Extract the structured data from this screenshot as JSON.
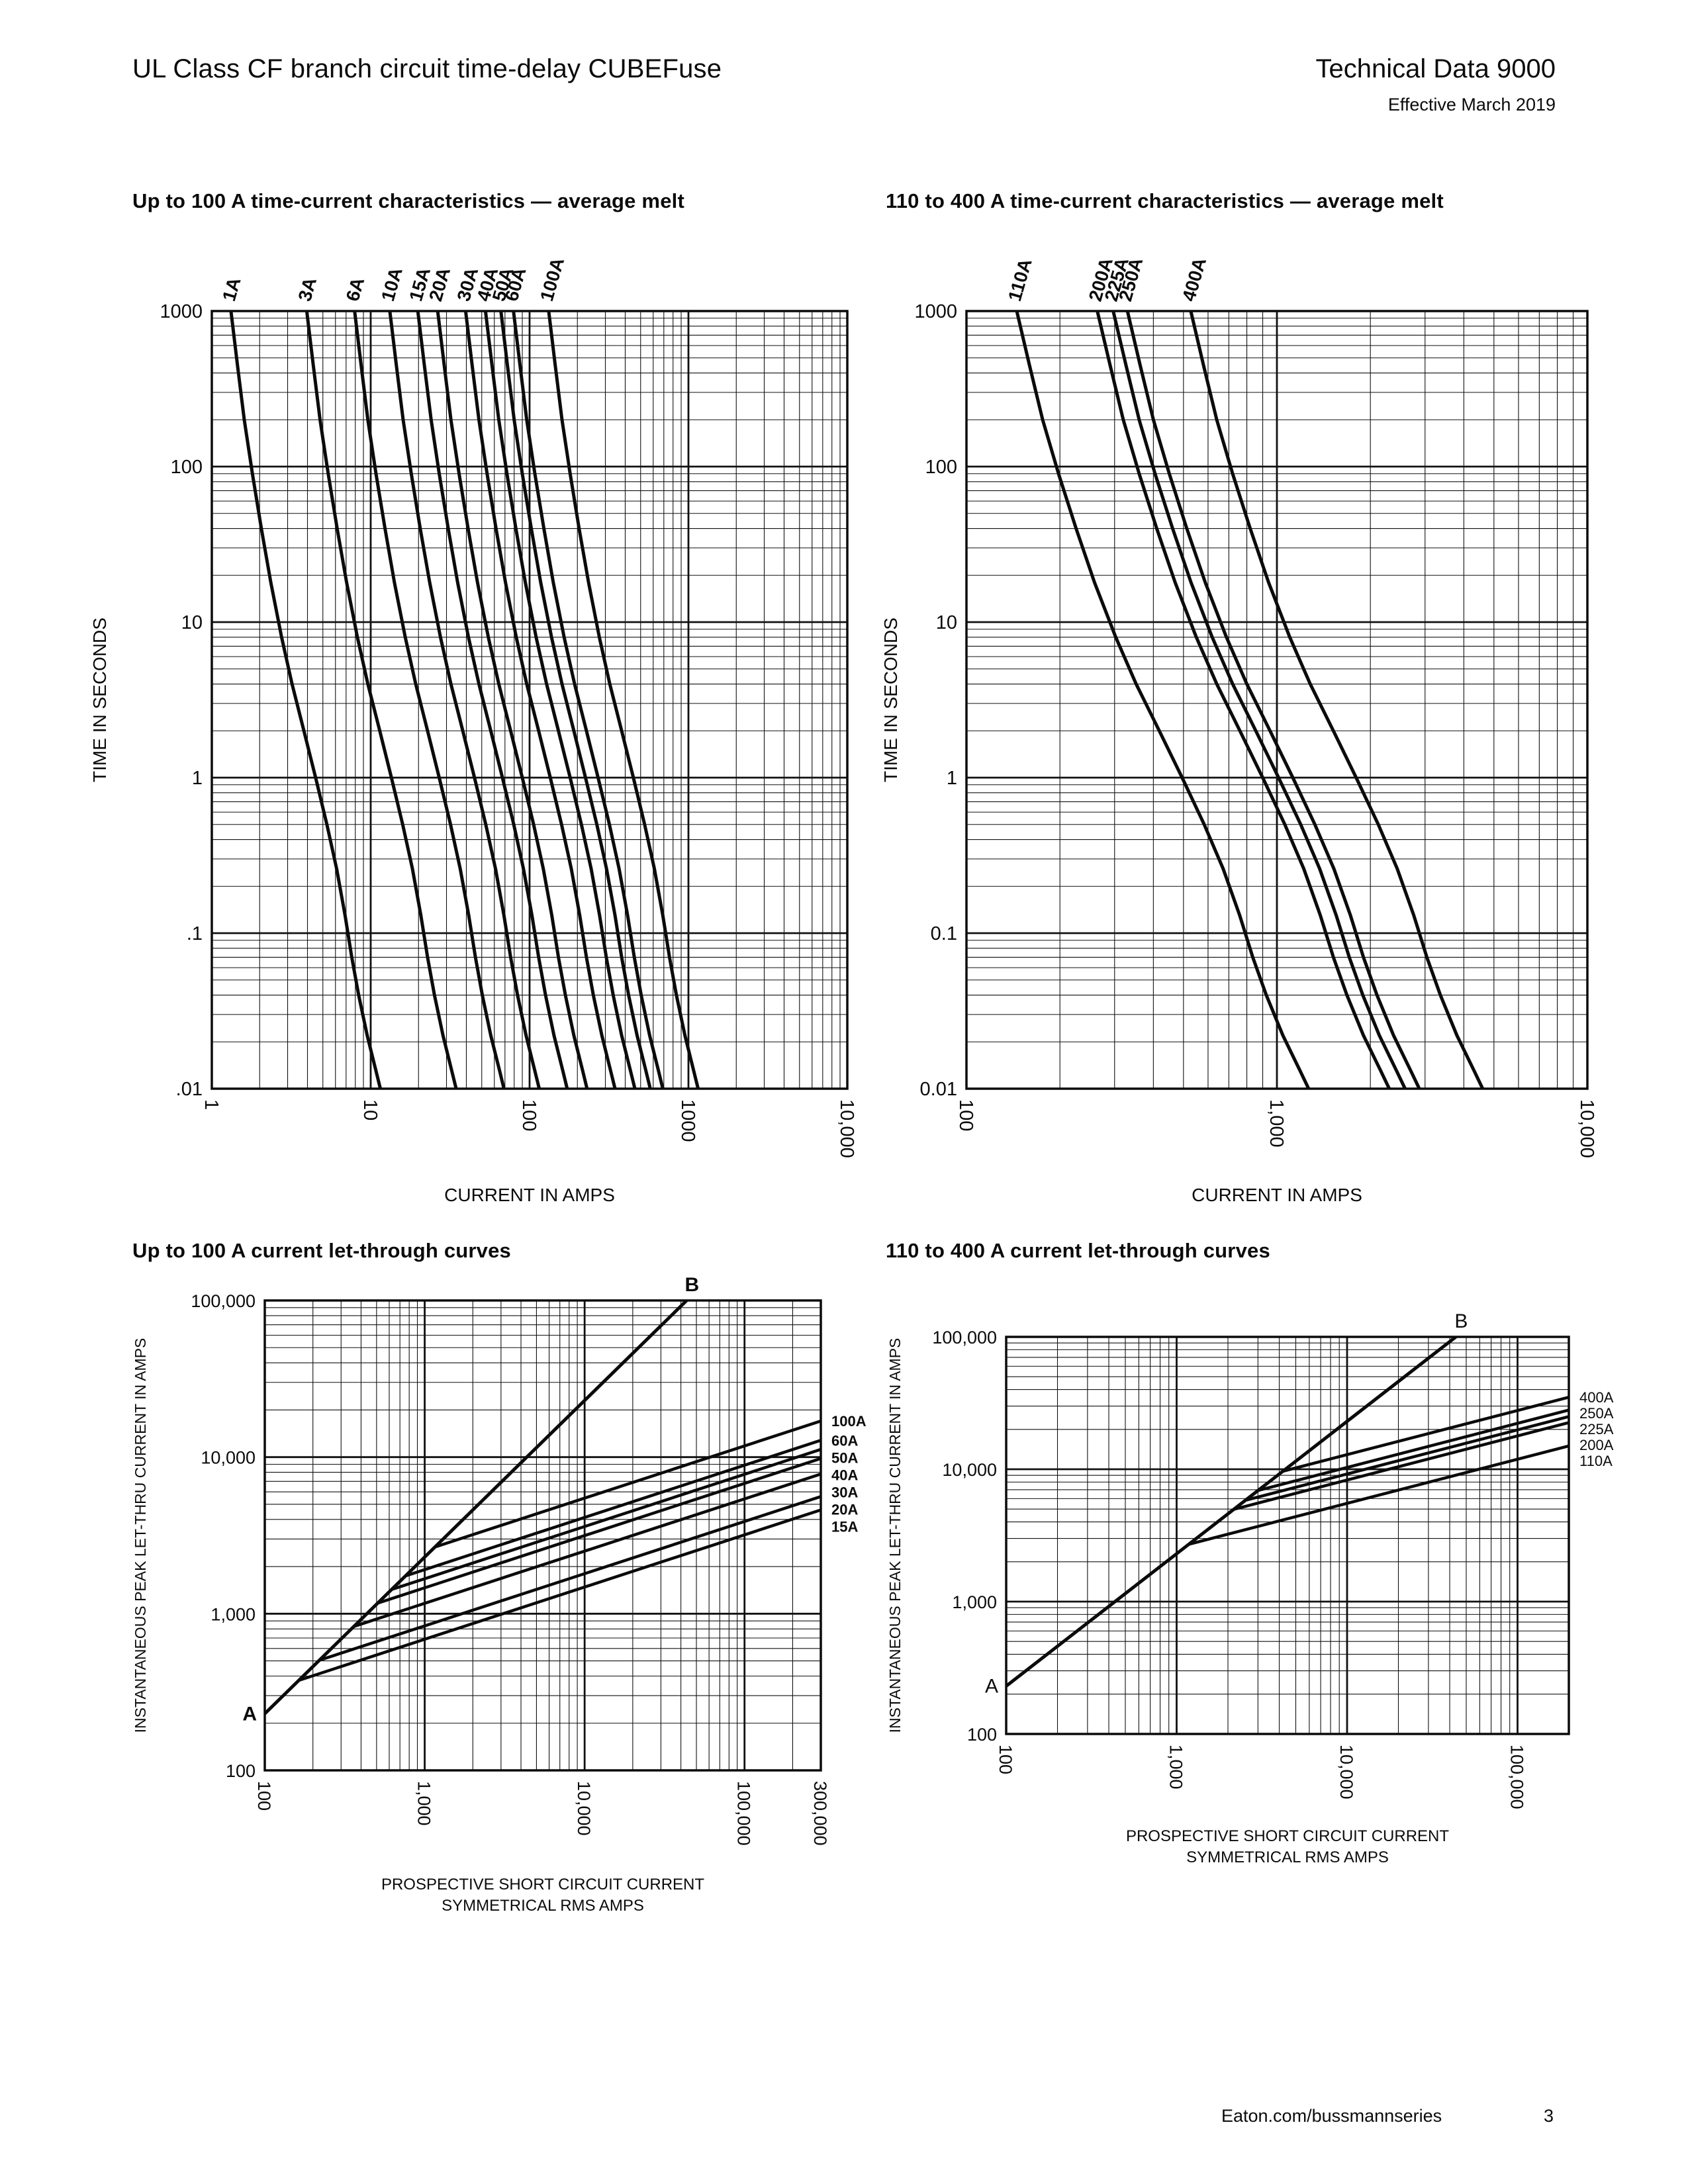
{
  "header": {
    "title_left": "UL Class CF branch circuit time-delay CUBEFuse",
    "title_right": "Technical Data 9000",
    "subtitle_right": "Effective March 2019"
  },
  "footer": {
    "website": "Eaton.com/bussmannseries",
    "page_number": "3"
  },
  "colors": {
    "ink": "#0b0b0b",
    "background": "#ffffff"
  },
  "chart_data": [
    {
      "id": "tcc-up-to-100a",
      "type": "line",
      "title": "Up to 100 A time-current characteristics — average melt",
      "xlabel": "CURRENT IN AMPS",
      "ylabel": "TIME IN SECONDS",
      "x_scale": "log",
      "y_scale": "log",
      "grid": "log-minor",
      "xlim": [
        1,
        10000
      ],
      "ylim": [
        0.01,
        1000
      ],
      "x_ticks": [
        {
          "v": 1,
          "label": "1"
        },
        {
          "v": 10,
          "label": "10"
        },
        {
          "v": 100,
          "label": "100"
        },
        {
          "v": 1000,
          "label": "1000"
        },
        {
          "v": 10000,
          "label": "10,000"
        }
      ],
      "y_ticks": [
        {
          "v": 1000,
          "label": "1000"
        },
        {
          "v": 100,
          "label": "100"
        },
        {
          "v": 10,
          "label": "10"
        },
        {
          "v": 1,
          "label": "1"
        },
        {
          "v": 0.1,
          "label": ".1"
        },
        {
          "v": 0.01,
          "label": ".01"
        }
      ],
      "series": [
        {
          "name": "1A",
          "rating": 1
        },
        {
          "name": "3A",
          "rating": 3
        },
        {
          "name": "6A",
          "rating": 6
        },
        {
          "name": "10A",
          "rating": 10
        },
        {
          "name": "15A",
          "rating": 15
        },
        {
          "name": "20A",
          "rating": 20
        },
        {
          "name": "30A",
          "rating": 30
        },
        {
          "name": "40A",
          "rating": 40
        },
        {
          "name": "50A",
          "rating": 50
        },
        {
          "name": "60A",
          "rating": 60
        },
        {
          "name": "100A",
          "rating": 100
        }
      ],
      "melt_profile_multiple_vs_seconds": [
        [
          1.32,
          1000
        ],
        [
          1.45,
          450
        ],
        [
          1.6,
          200
        ],
        [
          1.8,
          90
        ],
        [
          2.05,
          40
        ],
        [
          2.35,
          18
        ],
        [
          2.75,
          8
        ],
        [
          3.2,
          4
        ],
        [
          3.8,
          2
        ],
        [
          4.5,
          1
        ],
        [
          5.3,
          0.5
        ],
        [
          6.1,
          0.26
        ],
        [
          6.9,
          0.13
        ],
        [
          7.6,
          0.07
        ],
        [
          8.4,
          0.04
        ],
        [
          9.5,
          0.022
        ],
        [
          10.8,
          0.013
        ],
        [
          11.5,
          0.01
        ]
      ]
    },
    {
      "id": "tcc-110-400a",
      "type": "line",
      "title": "110 to 400 A time-current characteristics — average melt",
      "xlabel": "CURRENT IN AMPS",
      "ylabel": "TIME IN SECONDS",
      "x_scale": "log",
      "y_scale": "log",
      "grid": "log-minor",
      "xlim": [
        100,
        10000
      ],
      "ylim": [
        0.01,
        1000
      ],
      "x_ticks": [
        {
          "v": 100,
          "label": "100"
        },
        {
          "v": 1000,
          "label": "1,000"
        },
        {
          "v": 10000,
          "label": "10,000"
        }
      ],
      "y_ticks": [
        {
          "v": 1000,
          "label": "1000"
        },
        {
          "v": 100,
          "label": "100"
        },
        {
          "v": 10,
          "label": "10"
        },
        {
          "v": 1,
          "label": "1"
        },
        {
          "v": 0.1,
          "label": "0.1"
        },
        {
          "v": 0.01,
          "label": "0.01"
        }
      ],
      "series": [
        {
          "name": "110A",
          "rating": 110
        },
        {
          "name": "200A",
          "rating": 200
        },
        {
          "name": "225A",
          "rating": 225
        },
        {
          "name": "250A",
          "rating": 250
        },
        {
          "name": "400A",
          "rating": 400
        }
      ],
      "melt_profile_multiple_vs_seconds": [
        [
          1.32,
          1000
        ],
        [
          1.45,
          450
        ],
        [
          1.6,
          200
        ],
        [
          1.8,
          90
        ],
        [
          2.05,
          40
        ],
        [
          2.35,
          18
        ],
        [
          2.75,
          8
        ],
        [
          3.2,
          4
        ],
        [
          3.8,
          2
        ],
        [
          4.5,
          1
        ],
        [
          5.3,
          0.5
        ],
        [
          6.1,
          0.26
        ],
        [
          6.9,
          0.13
        ],
        [
          7.6,
          0.07
        ],
        [
          8.4,
          0.04
        ],
        [
          9.5,
          0.022
        ],
        [
          10.8,
          0.013
        ],
        [
          11.5,
          0.01
        ]
      ]
    },
    {
      "id": "lt-up-to-100a",
      "type": "line",
      "title": "Up to 100 A current let-through curves",
      "xlabel_lines": [
        "PROSPECTIVE SHORT CIRCUIT CURRENT",
        "SYMMETRICAL RMS AMPS"
      ],
      "ylabel": "INSTANTANEOUS PEAK LET-THRU CURRENT IN AMPS",
      "x_scale": "log",
      "y_scale": "log",
      "grid": "log-minor",
      "xlim": [
        100,
        300000
      ],
      "ylim": [
        100,
        100000
      ],
      "x_ticks": [
        {
          "v": 100,
          "label": "100"
        },
        {
          "v": 1000,
          "label": "1,000"
        },
        {
          "v": 10000,
          "label": "10,000"
        },
        {
          "v": 100000,
          "label": "100,000"
        },
        {
          "v": 300000,
          "label": "300,000"
        }
      ],
      "y_ticks": [
        {
          "v": 100000,
          "label": "100,000"
        },
        {
          "v": 10000,
          "label": "10,000"
        },
        {
          "v": 1000,
          "label": "1,000"
        },
        {
          "v": 100,
          "label": "100"
        }
      ],
      "diagonal": {
        "start_label": "A",
        "end_label": "B",
        "peak_ratio": 2.3
      },
      "series": [
        {
          "name": "100A",
          "peak_letthru_at_xmax": 17000
        },
        {
          "name": "60A",
          "peak_letthru_at_xmax": 12800
        },
        {
          "name": "50A",
          "peak_letthru_at_xmax": 11200
        },
        {
          "name": "40A",
          "peak_letthru_at_xmax": 9800
        },
        {
          "name": "30A",
          "peak_letthru_at_xmax": 7800
        },
        {
          "name": "20A",
          "peak_letthru_at_xmax": 5600
        },
        {
          "name": "15A",
          "peak_letthru_at_xmax": 4600
        }
      ]
    },
    {
      "id": "lt-110-400a",
      "type": "line",
      "title": "110 to 400 A current let-through curves",
      "xlabel_lines": [
        "PROSPECTIVE SHORT CIRCUIT CURRENT",
        "SYMMETRICAL RMS AMPS"
      ],
      "ylabel": "INSTANTANEOUS PEAK LET-THRU CURRENT IN AMPS",
      "x_scale": "log",
      "y_scale": "log",
      "grid": "log-minor",
      "xlim": [
        100,
        200000
      ],
      "ylim": [
        100,
        100000
      ],
      "x_ticks": [
        {
          "v": 100,
          "label": "100"
        },
        {
          "v": 1000,
          "label": "1,000"
        },
        {
          "v": 10000,
          "label": "10,000"
        },
        {
          "v": 100000,
          "label": "100,000"
        }
      ],
      "y_ticks": [
        {
          "v": 100000,
          "label": "100,000"
        },
        {
          "v": 10000,
          "label": "10,000"
        },
        {
          "v": 1000,
          "label": "1,000"
        },
        {
          "v": 100,
          "label": "100"
        }
      ],
      "diagonal": {
        "start_label": "A",
        "end_label": "B",
        "peak_ratio": 2.3
      },
      "series": [
        {
          "name": "400A",
          "peak_letthru_at_xmax": 35000
        },
        {
          "name": "250A",
          "peak_letthru_at_xmax": 28000
        },
        {
          "name": "225A",
          "peak_letthru_at_xmax": 25000
        },
        {
          "name": "200A",
          "peak_letthru_at_xmax": 22500
        },
        {
          "name": "110A",
          "peak_letthru_at_xmax": 15000
        }
      ]
    }
  ]
}
